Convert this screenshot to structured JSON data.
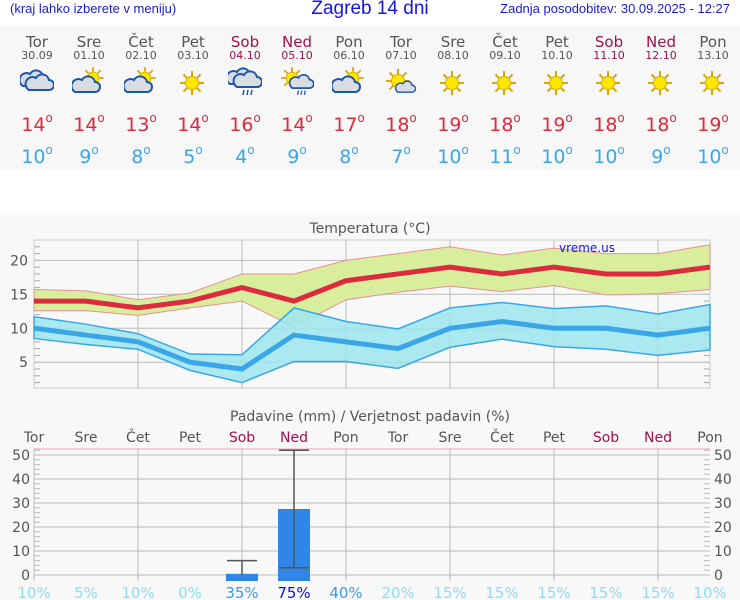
{
  "header": {
    "hint": "(kraj lahko izberete v meniju)",
    "title": "Zagreb 14 dni",
    "updated": "Zadnja posodobitev: 30.09.2025 - 12:27"
  },
  "days": [
    {
      "name": "Tor",
      "date": "30.09",
      "icon": "cloudy",
      "max": "14",
      "min": "10",
      "weekend": false
    },
    {
      "name": "Sre",
      "date": "01.10",
      "icon": "partly-cloudy",
      "max": "14",
      "min": "9",
      "weekend": false
    },
    {
      "name": "Čet",
      "date": "02.10",
      "icon": "partly-cloudy",
      "max": "13",
      "min": "8",
      "weekend": false
    },
    {
      "name": "Pet",
      "date": "03.10",
      "icon": "sunny",
      "max": "14",
      "min": "5",
      "weekend": false
    },
    {
      "name": "Sob",
      "date": "04.10",
      "icon": "rain",
      "max": "16",
      "min": "4",
      "weekend": true
    },
    {
      "name": "Ned",
      "date": "05.10",
      "icon": "sun-rain",
      "max": "14",
      "min": "9",
      "weekend": true
    },
    {
      "name": "Pon",
      "date": "06.10",
      "icon": "partly-cloudy",
      "max": "17",
      "min": "8",
      "weekend": false
    },
    {
      "name": "Tor",
      "date": "07.10",
      "icon": "mostly-sunny",
      "max": "18",
      "min": "7",
      "weekend": false
    },
    {
      "name": "Sre",
      "date": "08.10",
      "icon": "sunny",
      "max": "19",
      "min": "10",
      "weekend": false
    },
    {
      "name": "Čet",
      "date": "09.10",
      "icon": "sunny",
      "max": "18",
      "min": "11",
      "weekend": false
    },
    {
      "name": "Pet",
      "date": "10.10",
      "icon": "sunny",
      "max": "19",
      "min": "10",
      "weekend": false
    },
    {
      "name": "Sob",
      "date": "11.10",
      "icon": "sunny",
      "max": "18",
      "min": "10",
      "weekend": true
    },
    {
      "name": "Ned",
      "date": "12.10",
      "icon": "sunny",
      "max": "18",
      "min": "9",
      "weekend": true
    },
    {
      "name": "Pon",
      "date": "13.10",
      "icon": "sunny",
      "max": "19",
      "min": "10",
      "weekend": false
    }
  ],
  "chart_data": [
    {
      "type": "line",
      "title": "Temperatura (°C)",
      "watermark": "vreme.us",
      "yticks": [
        5,
        10,
        15,
        20
      ],
      "ylim": [
        1.2,
        23
      ],
      "grid": true,
      "series": [
        {
          "values": [
            14,
            14,
            13,
            14,
            16,
            14,
            17,
            18,
            19,
            18,
            19,
            18,
            18,
            19
          ],
          "color": "#dc2a3e",
          "band_upper": [
            15.7,
            15.5,
            14.2,
            15.2,
            18,
            18,
            20,
            21,
            22,
            20.8,
            21.8,
            21,
            21,
            22.3
          ],
          "band_lower": [
            12.6,
            12.6,
            11.9,
            13,
            14,
            10.2,
            14.2,
            15.3,
            16.2,
            15.4,
            16.3,
            14.9,
            15.1,
            15.7
          ],
          "band_color": "#d8ee9c"
        },
        {
          "values": [
            10,
            9,
            8,
            5,
            4,
            9,
            8,
            7,
            10,
            11,
            10,
            10,
            9,
            10
          ],
          "color": "#3aa6e8",
          "band_upper": [
            11.7,
            10.6,
            9.2,
            6.2,
            6.1,
            13,
            11,
            9.9,
            13,
            13.8,
            12.9,
            13.3,
            12.1,
            13.5
          ],
          "band_lower": [
            8.5,
            7.6,
            6.9,
            3.8,
            2,
            5.1,
            5.1,
            4.1,
            7.2,
            8.4,
            7.3,
            6.9,
            6,
            6.8
          ],
          "band_color": "#9ee6f0"
        }
      ]
    },
    {
      "type": "bar",
      "title": "Padavine (mm) / Verjetnost padavin (%)",
      "categories": [
        "Tor",
        "Sre",
        "Čet",
        "Pet",
        "Sob",
        "Ned",
        "Pon",
        "Tor",
        "Sre",
        "Čet",
        "Pet",
        "Sob",
        "Ned",
        "Pon"
      ],
      "values": [
        0,
        0,
        0,
        0,
        0.5,
        27.5,
        0,
        0,
        0,
        0,
        0,
        0,
        0,
        0
      ],
      "error_low": [
        null,
        null,
        null,
        null,
        0,
        3,
        null,
        null,
        null,
        null,
        null,
        null,
        null,
        null
      ],
      "error_high": [
        null,
        null,
        null,
        null,
        6,
        52,
        null,
        null,
        null,
        null,
        null,
        null,
        null,
        null
      ],
      "probability": [
        "10%",
        "5%",
        "10%",
        "0%",
        "35%",
        "75%",
        "40%",
        "20%",
        "15%",
        "15%",
        "15%",
        "15%",
        "15%",
        "10%"
      ],
      "yticks": [
        0,
        10,
        20,
        30,
        40,
        50
      ],
      "ylim": [
        -2.5,
        52.5
      ],
      "bar_color": "#2f86e6"
    }
  ]
}
